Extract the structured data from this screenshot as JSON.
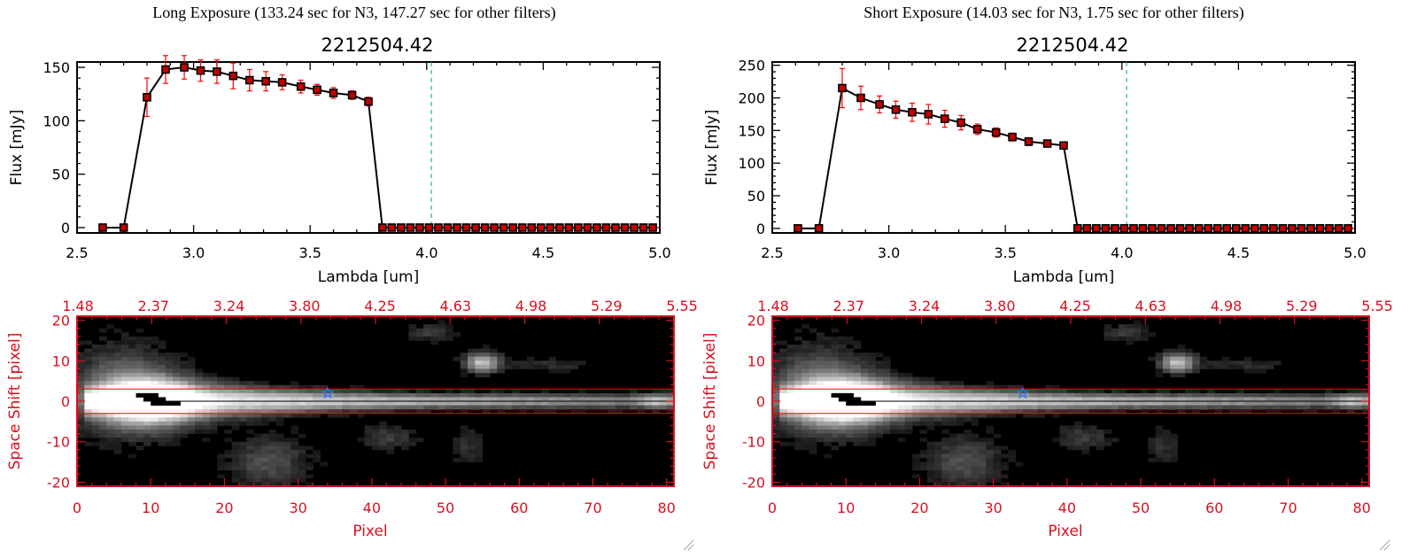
{
  "panels": [
    {
      "heading": "Long Exposure (133.24 sec for N3, 147.27 sec for other filters)",
      "spectrum": {
        "type": "line",
        "title": "2212504.42",
        "xlabel": "Lambda [um]",
        "ylabel": "Flux [mJy]",
        "xlim": [
          2.5,
          5.0
        ],
        "ylim": [
          -5,
          155
        ],
        "xticks": [
          "2.5",
          "3.0",
          "3.5",
          "4.0",
          "4.5",
          "5.0"
        ],
        "yticks": [
          "0",
          "50",
          "100",
          "150"
        ],
        "cutoff_x": 4.02,
        "series": [
          {
            "x": [
              2.61,
              2.7,
              2.8,
              2.88,
              2.96,
              3.03,
              3.1,
              3.17,
              3.24,
              3.31,
              3.38,
              3.46,
              3.53,
              3.6,
              3.68,
              3.75,
              3.81,
              3.85,
              3.89,
              3.93,
              3.97,
              4.01,
              4.05,
              4.09,
              4.13,
              4.17,
              4.21,
              4.25,
              4.29,
              4.33,
              4.37,
              4.41,
              4.45,
              4.49,
              4.53,
              4.57,
              4.61,
              4.65,
              4.69,
              4.73,
              4.77,
              4.81,
              4.85,
              4.89,
              4.93,
              4.97
            ],
            "y": [
              0,
              0,
              122,
              148,
              150,
              147,
              146,
              142,
              138,
              137,
              136,
              132,
              129,
              126,
              124,
              118,
              0,
              0,
              0,
              0,
              0,
              0,
              0,
              0,
              0,
              0,
              0,
              0,
              0,
              0,
              0,
              0,
              0,
              0,
              0,
              0,
              0,
              0,
              0,
              0,
              0,
              0,
              0,
              0,
              0,
              0
            ],
            "err": [
              0,
              0,
              18,
              13,
              11,
              10,
              11,
              12,
              10,
              9,
              7,
              6,
              5,
              5,
              4,
              4,
              0,
              0,
              0,
              0,
              0,
              0,
              0,
              0,
              0,
              0,
              0,
              0,
              0,
              0,
              0,
              0,
              0,
              0,
              0,
              0,
              0,
              0,
              0,
              0,
              0,
              0,
              0,
              0,
              0,
              0
            ]
          }
        ]
      },
      "image": {
        "type": "heatmap",
        "xlabel": "Pixel",
        "ylabel": "Space Shift [pixel]",
        "xlim": [
          0,
          81
        ],
        "ylim": [
          -21,
          21
        ],
        "xticks": [
          "0",
          "10",
          "20",
          "30",
          "40",
          "50",
          "60",
          "70",
          "80"
        ],
        "yticks": [
          "-20",
          "-10",
          "0",
          "10",
          "20"
        ],
        "top_ticks": [
          "1.48",
          "2.37",
          "3.24",
          "3.80",
          "4.25",
          "4.63",
          "4.98",
          "5.29",
          "5.55"
        ],
        "band": [
          -3,
          3
        ],
        "marker": [
          34,
          2
        ]
      }
    },
    {
      "heading": "Short Exposure (14.03 sec for N3, 1.75 sec for other filters)",
      "spectrum": {
        "type": "line",
        "title": "2212504.42",
        "xlabel": "Lambda [um]",
        "ylabel": "Flux [mJy]",
        "xlim": [
          2.5,
          5.0
        ],
        "ylim": [
          -7,
          255
        ],
        "xticks": [
          "2.5",
          "3.0",
          "3.5",
          "4.0",
          "4.5",
          "5.0"
        ],
        "yticks": [
          "0",
          "50",
          "100",
          "150",
          "200",
          "250"
        ],
        "cutoff_x": 4.02,
        "series": [
          {
            "x": [
              2.61,
              2.7,
              2.8,
              2.88,
              2.96,
              3.03,
              3.1,
              3.17,
              3.24,
              3.31,
              3.38,
              3.46,
              3.53,
              3.6,
              3.68,
              3.75,
              3.81,
              3.85,
              3.89,
              3.93,
              3.97,
              4.01,
              4.05,
              4.09,
              4.13,
              4.17,
              4.21,
              4.25,
              4.29,
              4.33,
              4.37,
              4.41,
              4.45,
              4.49,
              4.53,
              4.57,
              4.61,
              4.65,
              4.69,
              4.73,
              4.77,
              4.81,
              4.85,
              4.89,
              4.93,
              4.97
            ],
            "y": [
              0,
              0,
              215,
              200,
              190,
              182,
              178,
              175,
              168,
              162,
              152,
              147,
              140,
              133,
              130,
              127,
              0,
              0,
              0,
              0,
              0,
              0,
              0,
              0,
              0,
              0,
              0,
              0,
              0,
              0,
              0,
              0,
              0,
              0,
              0,
              0,
              0,
              0,
              0,
              0,
              0,
              0,
              0,
              0,
              0,
              0
            ],
            "err": [
              0,
              0,
              30,
              18,
              13,
              13,
              14,
              15,
              13,
              11,
              8,
              7,
              6,
              6,
              5,
              5,
              0,
              0,
              0,
              0,
              0,
              0,
              0,
              0,
              0,
              0,
              0,
              0,
              0,
              0,
              0,
              0,
              0,
              0,
              0,
              0,
              0,
              0,
              0,
              0,
              0,
              0,
              0,
              0,
              0,
              0
            ]
          }
        ]
      },
      "image": {
        "type": "heatmap",
        "xlabel": "Pixel",
        "ylabel": "Space Shift [pixel]",
        "xlim": [
          0,
          81
        ],
        "ylim": [
          -21,
          21
        ],
        "xticks": [
          "0",
          "10",
          "20",
          "30",
          "40",
          "50",
          "60",
          "70",
          "80"
        ],
        "yticks": [
          "-20",
          "-10",
          "0",
          "10",
          "20"
        ],
        "top_ticks": [
          "1.48",
          "2.37",
          "3.24",
          "3.80",
          "4.25",
          "4.63",
          "4.98",
          "5.29",
          "5.55"
        ],
        "band": [
          -3,
          3
        ],
        "marker": [
          34,
          2
        ]
      }
    }
  ],
  "colors": {
    "spectrum_line": "#000000",
    "marker_fill": "#c00000",
    "error_bar": "#ff0000",
    "cutoff_line": "#00a0a0",
    "baseline_dash": "#ff0000",
    "image_axis": "#d81020",
    "band_line": "#ff0000",
    "star_marker": "#3070ff"
  }
}
